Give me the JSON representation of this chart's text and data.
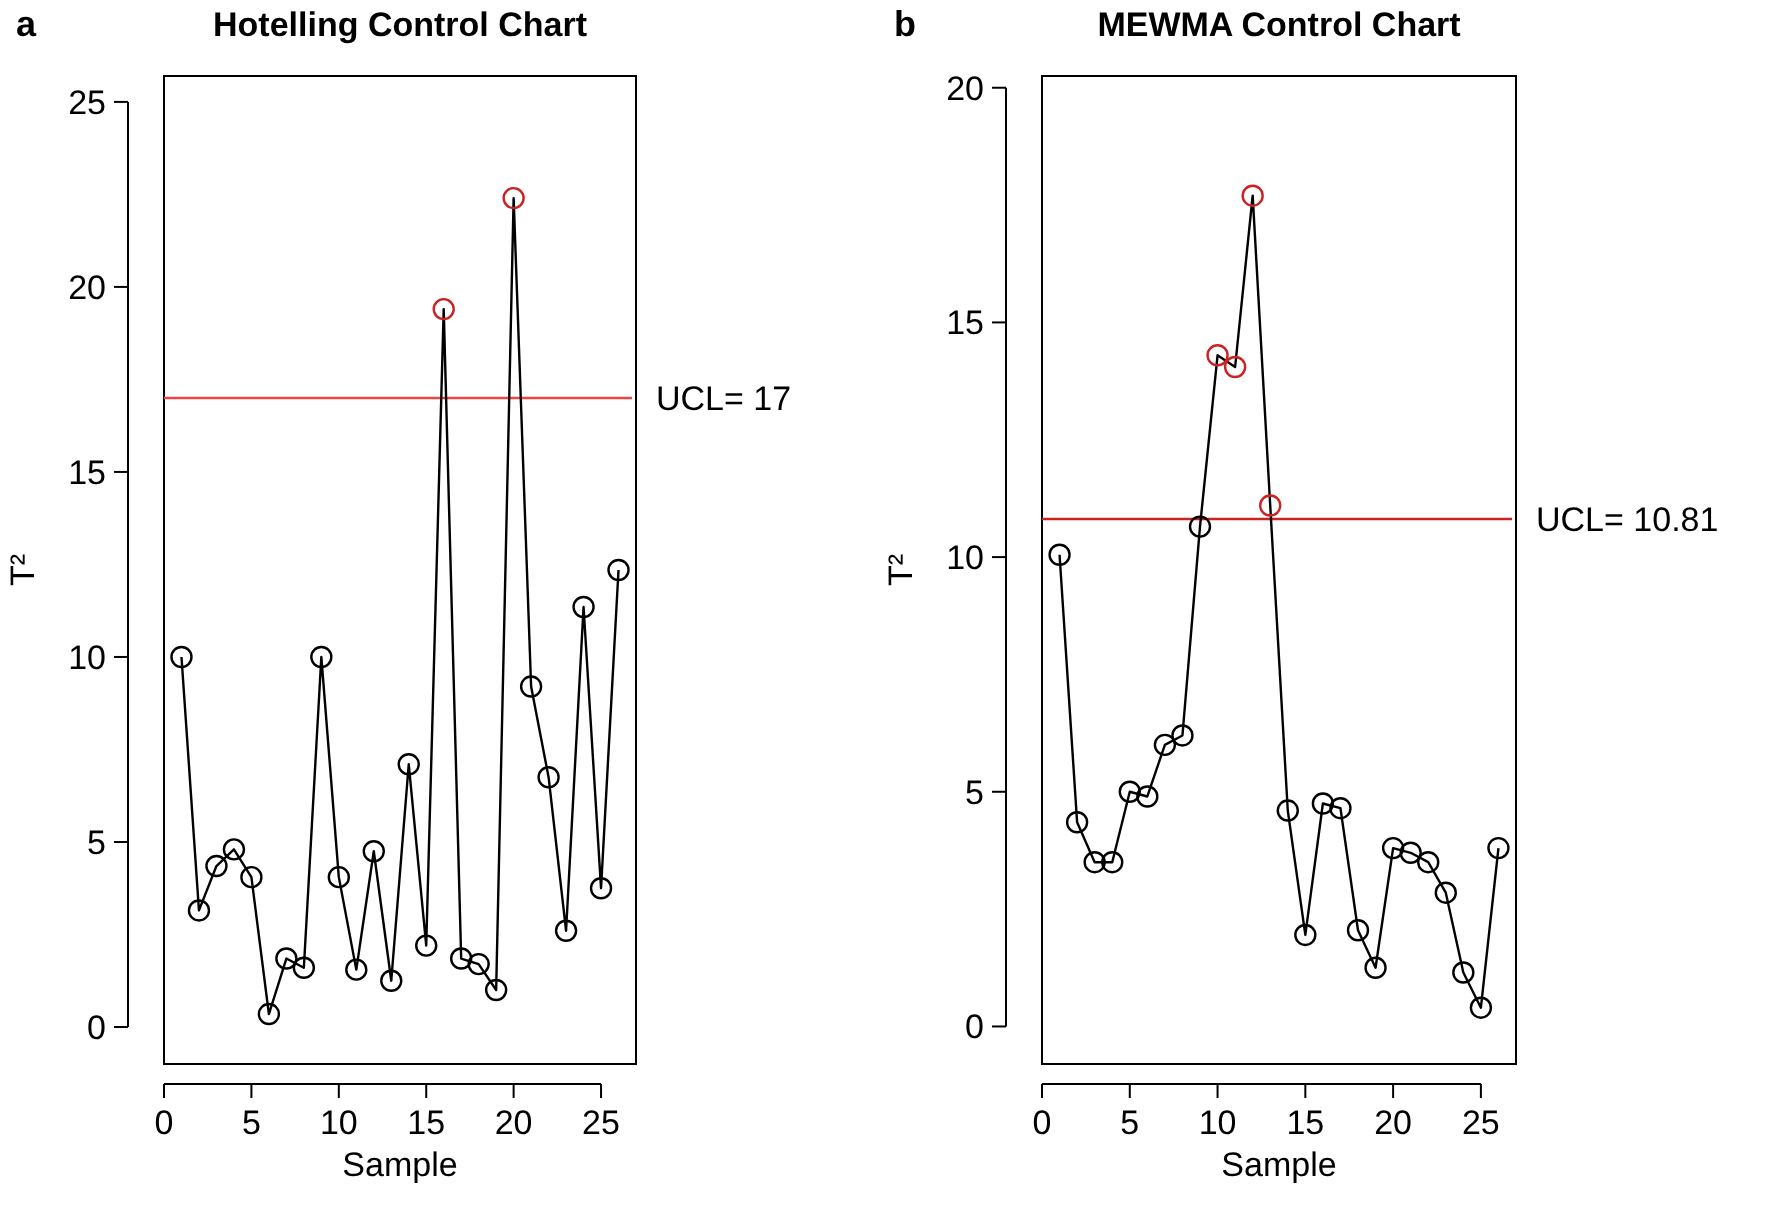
{
  "chart_data": [
    {
      "type": "line",
      "title": "Hotelling Control Chart",
      "xlabel": "Sample",
      "ylabel": "T²",
      "annotations": [
        "a"
      ],
      "x": [
        1,
        2,
        3,
        4,
        5,
        6,
        7,
        8,
        9,
        10,
        11,
        12,
        13,
        14,
        15,
        16,
        17,
        18,
        19,
        20,
        21,
        22,
        23,
        24,
        25,
        26
      ],
      "series": [
        {
          "color": "#000000",
          "values": [
            10.0,
            3.15,
            4.35,
            4.8,
            4.05,
            0.35,
            1.85,
            1.6,
            10.0,
            4.05,
            1.55,
            4.75,
            1.25,
            7.1,
            2.2,
            19.4,
            1.85,
            1.7,
            1.0,
            22.4,
            9.2,
            6.75,
            2.6,
            11.35,
            3.75,
            12.35
          ],
          "colors": [
            "#000000",
            "#000000",
            "#000000",
            "#000000",
            "#000000",
            "#000000",
            "#000000",
            "#000000",
            "#000000",
            "#000000",
            "#000000",
            "#000000",
            "#000000",
            "#000000",
            "#000000",
            "#cc2222",
            "#000000",
            "#000000",
            "#000000",
            "#cc2222",
            "#000000",
            "#000000",
            "#000000",
            "#000000",
            "#000000",
            "#000000"
          ]
        }
      ],
      "marker": "circle",
      "line_style": "solid",
      "grid": false,
      "xlim": [
        0,
        27
      ],
      "xticks": [
        0,
        5,
        10,
        15,
        20,
        25
      ],
      "ylim": [
        -1,
        25.7
      ],
      "yticks": [
        0,
        5,
        10,
        15,
        20,
        25
      ],
      "ref_lines": [
        {
          "axis": "y",
          "value": 17,
          "label": "UCL= 17",
          "color": "#ee4444"
        }
      ]
    },
    {
      "type": "line",
      "title": "MEWMA Control Chart",
      "xlabel": "Sample",
      "ylabel": "T²",
      "annotations": [
        "b"
      ],
      "x": [
        1,
        2,
        3,
        4,
        5,
        6,
        7,
        8,
        9,
        10,
        11,
        12,
        13,
        14,
        15,
        16,
        17,
        18,
        19,
        20,
        21,
        22,
        23,
        24,
        25,
        26
      ],
      "series": [
        {
          "color": "#000000",
          "values": [
            10.05,
            4.35,
            3.5,
            3.5,
            5.0,
            4.9,
            6.0,
            6.2,
            10.65,
            14.3,
            14.05,
            17.7,
            11.1,
            4.6,
            1.95,
            4.75,
            4.65,
            2.05,
            1.25,
            3.8,
            3.7,
            3.5,
            2.85,
            1.15,
            0.4,
            3.8
          ],
          "colors": [
            "#000000",
            "#000000",
            "#000000",
            "#000000",
            "#000000",
            "#000000",
            "#000000",
            "#000000",
            "#000000",
            "#cc2222",
            "#cc2222",
            "#cc2222",
            "#cc2222",
            "#000000",
            "#000000",
            "#000000",
            "#000000",
            "#000000",
            "#000000",
            "#000000",
            "#000000",
            "#000000",
            "#000000",
            "#000000",
            "#000000",
            "#000000"
          ]
        }
      ],
      "marker": "circle",
      "line_style": "solid",
      "grid": false,
      "xlim": [
        0,
        27
      ],
      "xticks": [
        0,
        5,
        10,
        15,
        20,
        25
      ],
      "ylim": [
        -0.8,
        20.25
      ],
      "yticks": [
        0,
        5,
        10,
        15,
        20
      ],
      "ref_lines": [
        {
          "axis": "y",
          "value": 10.81,
          "label": "UCL= 10.81",
          "color": "#cc2222"
        }
      ]
    }
  ]
}
